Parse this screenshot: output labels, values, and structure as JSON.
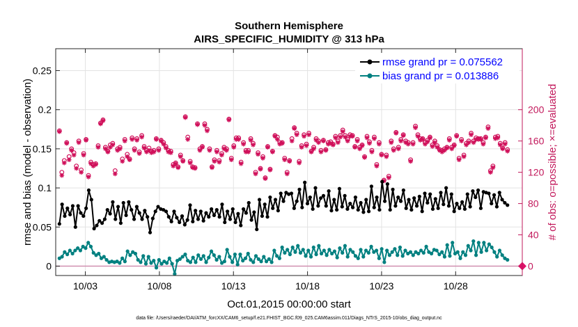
{
  "chart_data": {
    "type": "line",
    "title": "Southern Hemisphere",
    "subtitle": "AIRS_SPECIFIC_HUMIDITY @ 313 hPa",
    "xlabel": "Oct.01,2015 00:00:00 start",
    "ylabel": "rmse and bias (model - observation)",
    "ylabel_right": "# of obs: o=possible; ×=evaluated",
    "xlim": [
      1,
      32.5
    ],
    "ylim": [
      -0.012,
      0.278
    ],
    "ylim_right": [
      -12,
      278
    ],
    "x_ticks": [
      3,
      8,
      13,
      18,
      23,
      28
    ],
    "x_tick_labels": [
      "10/03",
      "10/08",
      "10/13",
      "10/18",
      "10/23",
      "10/28"
    ],
    "y_ticks": [
      0,
      0.05,
      0.1,
      0.15,
      0.2,
      0.25
    ],
    "y_tick_labels": [
      "0",
      "0.05",
      "0.1",
      "0.15",
      "0.2",
      "0.25"
    ],
    "y2_ticks": [
      0,
      40,
      80,
      120,
      160,
      200
    ],
    "y2_tick_labels": [
      "0",
      "40",
      "80",
      "120",
      "160",
      "200"
    ],
    "grid": true,
    "legend_position": "top-right",
    "colors": {
      "rmse": "#000000",
      "bias": "#008080",
      "obs": "#d0105a",
      "zero_line": "#d08fb0"
    },
    "legend": [
      "rmse grand pr = 0.075562",
      "bias grand pr = 0.013886"
    ],
    "series": [
      {
        "name": "rmse",
        "values": [
          0.054,
          0.079,
          0.064,
          0.074,
          0.066,
          0.077,
          0.05,
          0.077,
          0.068,
          0.064,
          0.074,
          0.097,
          0.085,
          0.048,
          0.052,
          0.058,
          0.055,
          0.06,
          0.072,
          0.067,
          0.082,
          0.06,
          0.076,
          0.055,
          0.081,
          0.065,
          0.082,
          0.072,
          0.06,
          0.076,
          0.068,
          0.06,
          0.071,
          0.063,
          0.043,
          0.061,
          0.07,
          0.076,
          0.073,
          0.072,
          0.07,
          0.063,
          0.057,
          0.07,
          0.062,
          0.056,
          0.064,
          0.053,
          0.059,
          0.078,
          0.057,
          0.071,
          0.06,
          0.07,
          0.058,
          0.068,
          0.063,
          0.073,
          0.065,
          0.072,
          0.063,
          0.079,
          0.056,
          0.07,
          0.06,
          0.073,
          0.056,
          0.067,
          0.052,
          0.073,
          0.068,
          0.081,
          0.059,
          0.069,
          0.047,
          0.085,
          0.064,
          0.079,
          0.063,
          0.088,
          0.074,
          0.085,
          0.071,
          0.093,
          0.083,
          0.094,
          0.092,
          0.093,
          0.074,
          0.083,
          0.098,
          0.075,
          0.107,
          0.08,
          0.088,
          0.073,
          0.1,
          0.077,
          0.087,
          0.09,
          0.077,
          0.096,
          0.071,
          0.085,
          0.072,
          0.099,
          0.076,
          0.09,
          0.073,
          0.08,
          0.075,
          0.088,
          0.072,
          0.081,
          0.069,
          0.085,
          0.07,
          0.102,
          0.075,
          0.088,
          0.072,
          0.108,
          0.083,
          0.105,
          0.072,
          0.098,
          0.077,
          0.088,
          0.083,
          0.097,
          0.074,
          0.085,
          0.072,
          0.087,
          0.077,
          0.089,
          0.07,
          0.093,
          0.081,
          0.092,
          0.073,
          0.086,
          0.074,
          0.094,
          0.079,
          0.1,
          0.077,
          0.092,
          0.07,
          0.08,
          0.074,
          0.082,
          0.073,
          0.092,
          0.076,
          0.096,
          0.088,
          0.097,
          0.074,
          0.095,
          0.094,
          0.093,
          0.08,
          0.091,
          0.076,
          0.094,
          0.085,
          0.081,
          0.078
        ],
        "marker": "filled-circle"
      },
      {
        "name": "bias",
        "values": [
          0.01,
          0.012,
          0.018,
          0.015,
          0.02,
          0.016,
          0.02,
          0.023,
          0.02,
          0.025,
          0.023,
          0.03,
          0.025,
          0.017,
          0.014,
          0.016,
          0.01,
          0.012,
          0.008,
          0.005,
          0.006,
          0.005,
          0.006,
          0.004,
          0.01,
          0.006,
          0.019,
          0.014,
          0.018,
          0.016,
          0.008,
          0.005,
          0.013,
          0.003,
          0.012,
          0.004,
          0.007,
          -0.002,
          0.008,
          0.003,
          0.006,
          0.004,
          0.01,
          0.003,
          -0.01,
          0.007,
          0.009,
          0.012,
          0.015,
          0.007,
          0.005,
          0.011,
          0.005,
          0.014,
          0.009,
          0.013,
          0.005,
          0.011,
          0.019,
          0.014,
          0.008,
          0.012,
          0.004,
          0.006,
          0.021,
          0.012,
          0.005,
          0.015,
          0.002,
          0.015,
          0.007,
          0.01,
          0.016,
          0.008,
          0.005,
          0.013,
          0.009,
          0.006,
          0.012,
          0.006,
          0.009,
          0.005,
          0.02,
          0.013,
          0.01,
          0.024,
          0.017,
          0.021,
          0.015,
          0.024,
          0.018,
          0.026,
          0.017,
          0.021,
          0.013,
          0.02,
          0.012,
          0.024,
          0.015,
          0.026,
          0.016,
          0.02,
          0.014,
          0.021,
          0.016,
          0.019,
          0.011,
          0.023,
          0.017,
          0.026,
          0.012,
          0.021,
          0.018,
          0.013,
          0.01,
          0.021,
          0.012,
          0.02,
          0.017,
          0.025,
          0.018,
          0.02,
          0.01,
          0.022,
          0.005,
          0.02,
          0.014,
          0.018,
          0.022,
          0.014,
          0.024,
          0.013,
          0.02,
          0.016,
          0.018,
          0.014,
          0.018,
          0.016,
          0.02,
          0.017,
          0.025,
          0.018,
          0.016,
          0.021,
          0.02,
          0.015,
          0.018,
          0.012,
          0.027,
          0.013,
          0.03,
          0.016,
          0.018,
          0.01,
          0.018,
          0.014,
          0.026,
          0.02,
          0.032,
          0.014,
          0.03,
          0.018,
          0.03,
          0.02,
          0.028,
          0.024,
          0.018,
          0.012,
          0.02,
          0.014,
          0.01,
          0.008
        ],
        "marker": "filled-circle"
      },
      {
        "name": "obs_possible",
        "axis": "right",
        "values": [
          173,
          120,
          135,
          158,
          140,
          150,
          145,
          128,
          160,
          123,
          144,
          162,
          116,
          133,
          130,
          131,
          154,
          183,
          187,
          152,
          147,
          155,
          157,
          122,
          150,
          152,
          137,
          162,
          143,
          137,
          164,
          150,
          163,
          146,
          167,
          153,
          148,
          151,
          147,
          148,
          163,
          150,
          161,
          158,
          153,
          148,
          147,
          130,
          132,
          127,
          142,
          135,
          191,
          165,
          134,
          127,
          126,
          182,
          150,
          153,
          182,
          175,
          150,
          127,
          136,
          148,
          135,
          144,
          152,
          150,
          188,
          138,
          154,
          164,
          164,
          133,
          158,
          148,
          148,
          163,
          157,
          120,
          145,
          125,
          140,
          113,
          153,
          124,
          147,
          167,
          165,
          158,
          158,
          138,
          120,
          135,
          163,
          177,
          170,
          134,
          154,
          168,
          156,
          170,
          147,
          152,
          163,
          160,
          148,
          161,
          149,
          158,
          159,
          156,
          166,
          160,
          167,
          174,
          167,
          162,
          168,
          167,
          153,
          162,
          152,
          155,
          140,
          166,
          159,
          148,
          165,
          130,
          158,
          143,
          110,
          142,
          115,
          160,
          150,
          171,
          152,
          162,
          168,
          160,
          158,
          136,
          158,
          179,
          168,
          163,
          163,
          158,
          161,
          165,
          155,
          160,
          154,
          149,
          148,
          150,
          152,
          163,
          152,
          155,
          167,
          138,
          162,
          142,
          157,
          160,
          170,
          160,
          164,
          163,
          163,
          158,
          165,
          178,
          122,
          128,
          165,
          166,
          157,
          151,
          158,
          149
        ],
        "marker": "circle"
      },
      {
        "name": "obs_evaluated",
        "axis": "right",
        "values": [
          172,
          116,
          132,
          157,
          136,
          148,
          142,
          125,
          158,
          120,
          142,
          161,
          114,
          131,
          128,
          130,
          152,
          182,
          186,
          150,
          146,
          152,
          155,
          118,
          148,
          150,
          134,
          160,
          140,
          136,
          162,
          148,
          161,
          144,
          165,
          151,
          146,
          148,
          145,
          146,
          162,
          148,
          160,
          156,
          151,
          146,
          145,
          128,
          131,
          126,
          140,
          134,
          190,
          162,
          132,
          126,
          125,
          181,
          148,
          152,
          180,
          173,
          148,
          126,
          134,
          146,
          133,
          142,
          150,
          148,
          187,
          136,
          152,
          162,
          162,
          131,
          156,
          146,
          146,
          161,
          155,
          118,
          143,
          124,
          138,
          112,
          152,
          123,
          146,
          166,
          162,
          156,
          157,
          136,
          118,
          134,
          160,
          176,
          168,
          132,
          152,
          166,
          154,
          168,
          146,
          150,
          161,
          158,
          146,
          160,
          148,
          156,
          157,
          155,
          164,
          158,
          165,
          172,
          165,
          160,
          166,
          166,
          152,
          160,
          150,
          154,
          139,
          164,
          157,
          146,
          163,
          128,
          156,
          142,
          109,
          140,
          113,
          158,
          148,
          170,
          150,
          160,
          167,
          158,
          156,
          134,
          156,
          177,
          166,
          161,
          162,
          156,
          159,
          164,
          153,
          158,
          152,
          148,
          146,
          148,
          151,
          161,
          150,
          154,
          166,
          136,
          160,
          140,
          155,
          158,
          168,
          158,
          162,
          162,
          162,
          156,
          164,
          176,
          120,
          126,
          163,
          164,
          155,
          150,
          156,
          147
        ],
        "marker": "asterisk"
      }
    ]
  },
  "footer": {
    "data_file": "data file: /Users/raeder/DAI/ATM_forcXX/CAM6_setup/f.e21.FHIST_BGC.f09_025.CAM6assim.011/Diags_NTrS_2015-10/obs_diag_output.nc"
  }
}
